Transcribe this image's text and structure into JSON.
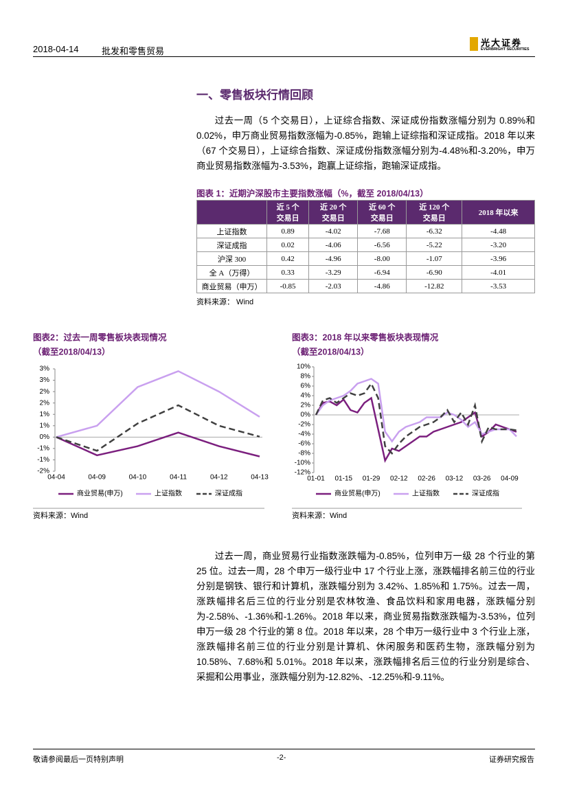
{
  "header": {
    "date": "2018-04-14",
    "title": "批发和零售贸易",
    "logo_cn": "光大证券",
    "logo_en": "EVERBRIGHT SECURITIES"
  },
  "section_title": "一、零售板块行情回顾",
  "paragraphs": [
    "过去一周（5 个交易日），上证综合指数、深证成份指数涨幅分别为 0.89%和 0.02%，申万商业贸易指数涨幅为-0.85%，跑输上证综指和深证成指。2018 年以来（67 个交易日），上证综合指数、深证成份指数涨幅分别为-4.48%和-3.20%，申万商业贸易指数涨幅为-3.53%，跑赢上证综指，跑输深证成指。",
    "过去一周，商业贸易行业指数涨跌幅为-0.85%，位列申万一级 28 个行业的第 25 位。过去一周，28 个申万一级行业中 17 个行业上涨，涨跌幅排名前三位的行业分别是钢铁、银行和计算机，涨跌幅分别为 3.42%、1.85%和 1.75%。过去一周，涨跌幅排名后三位的行业分别是农林牧渔、食品饮料和家用电器，涨跌幅分别为-2.58%、-1.36%和-1.26%。2018 年以来，商业贸易指数涨跌幅为-3.53%，位列申万一级 28 个行业的第 8 位。2018 年以来，28 个申万一级行业中 3 个行业上涨，涨跌幅排名前三位的行业分别是计算机、休闲服务和医药生物，涨跌幅分别为 10.58%、7.68%和 5.01%。2018 年以来，涨跌幅排名后三位的行业分别是综合、采掘和公用事业，涨跌幅分别为-12.82%、-12.25%和-9.11%。"
  ],
  "table": {
    "caption": "图表 1：近期沪深股市主要指数涨幅（%，截至 2018/04/13）",
    "columns": [
      "近 5 个\n交易日",
      "近 20 个\n交易日",
      "近 60 个\n交易日",
      "近 120 个\n交易日",
      "2018 年以来"
    ],
    "rows": [
      [
        "上证指数",
        "0.89",
        "-4.02",
        "-7.68",
        "-6.32",
        "-4.48"
      ],
      [
        "深证成指",
        "0.02",
        "-4.06",
        "-6.56",
        "-5.22",
        "-3.20"
      ],
      [
        "沪深 300",
        "0.42",
        "-4.96",
        "-8.00",
        "-1.07",
        "-3.96"
      ],
      [
        "全 A（万得）",
        "0.33",
        "-3.29",
        "-6.94",
        "-6.90",
        "-4.01"
      ],
      [
        "商业贸易（申万）",
        "-0.85",
        "-2.03",
        "-4.86",
        "-12.82",
        "-3.53"
      ]
    ],
    "source": "资料来源：  Wind"
  },
  "chart_data": [
    {
      "type": "line",
      "title": "图表2：过去一周零售板块表现情况",
      "subtitle": "（截至2018/04/13）",
      "source": "资料来源：Wind",
      "grid": false,
      "categories": [
        "04-04",
        "04-09",
        "04-10",
        "04-11",
        "04-12",
        "04-13"
      ],
      "ylim": [
        -1.5,
        3
      ],
      "yticks": [
        {
          "value": -1.5,
          "label": "-2%"
        },
        {
          "value": -1,
          "label": "-1%"
        },
        {
          "value": -0.5,
          "label": "-1%"
        },
        {
          "value": 0,
          "label": "0%"
        },
        {
          "value": 0.5,
          "label": "1%"
        },
        {
          "value": 1,
          "label": "1%"
        },
        {
          "value": 1.5,
          "label": "2%"
        },
        {
          "value": 2,
          "label": "2%"
        },
        {
          "value": 2.5,
          "label": "3%"
        },
        {
          "value": 3,
          "label": "3%"
        }
      ],
      "series": [
        {
          "name": "商业贸易(申万)",
          "color": "#7b1f7e",
          "values": [
            0,
            -0.8,
            -0.4,
            0.2,
            -0.4,
            -0.85
          ]
        },
        {
          "name": "上证指数",
          "color": "#c9a0ef",
          "values": [
            0,
            0.5,
            2.2,
            2.9,
            2.0,
            0.89
          ]
        },
        {
          "name": "深证成指",
          "color": "#404040",
          "dashed": true,
          "values": [
            0,
            -0.6,
            0.6,
            1.4,
            0.5,
            0.02
          ]
        }
      ]
    },
    {
      "type": "line",
      "title": "图表3：2018 年以来零售板块表现情况",
      "subtitle": "（截至2018/04/13）",
      "source": "资料来源：Wind",
      "grid": false,
      "categories": [
        "01-01",
        null,
        null,
        null,
        "01-15",
        null,
        null,
        null,
        "01-29",
        null,
        null,
        null,
        "02-12",
        null,
        null,
        null,
        "02-26",
        null,
        null,
        null,
        "03-12",
        null,
        null,
        null,
        "03-26",
        null,
        null,
        null,
        "04-09",
        null
      ],
      "ylim": [
        -12,
        10
      ],
      "yticks": [
        {
          "value": -12,
          "label": "-12%"
        },
        {
          "value": -10,
          "label": "-10%"
        },
        {
          "value": -8,
          "label": "-8%"
        },
        {
          "value": -6,
          "label": "-6%"
        },
        {
          "value": -4,
          "label": "-4%"
        },
        {
          "value": -2,
          "label": "-2%"
        },
        {
          "value": 0,
          "label": "0%"
        },
        {
          "value": 2,
          "label": "2%"
        },
        {
          "value": 4,
          "label": "4%"
        },
        {
          "value": 6,
          "label": "6%"
        },
        {
          "value": 8,
          "label": "8%"
        },
        {
          "value": 10,
          "label": "10%"
        }
      ],
      "series": [
        {
          "name": "商业贸易(申万)",
          "color": "#7b1f7e",
          "values": [
            0,
            2.5,
            2.8,
            2.0,
            3.2,
            1.0,
            0.5,
            2.5,
            3.5,
            -3.0,
            -9.5,
            -7.0,
            -7.5,
            -6.5,
            -5.5,
            -4.5,
            -4.5,
            -3.5,
            -3.0,
            -2.5,
            -2.0,
            -1.5,
            -0.5,
            0.5,
            -4.5,
            -3.5,
            -2.0,
            -2.5,
            -3.0,
            -3.53
          ]
        },
        {
          "name": "上证指数",
          "color": "#c9a0ef",
          "values": [
            0,
            2.0,
            3.0,
            3.5,
            4.0,
            5.0,
            6.5,
            7.0,
            7.5,
            6.5,
            -3.5,
            -5.5,
            -3.5,
            -2.5,
            -2.0,
            -1.5,
            -0.5,
            -0.5,
            -0.5,
            0.5,
            0.0,
            -1.0,
            -2.5,
            -1.5,
            -4.0,
            -3.5,
            -3.0,
            -3.0,
            -3.0,
            -4.48
          ]
        },
        {
          "name": "深证成指",
          "color": "#404040",
          "dashed": true,
          "values": [
            0,
            3.0,
            3.5,
            2.5,
            3.5,
            4.5,
            4.0,
            4.5,
            6.5,
            3.5,
            -6.5,
            -8.0,
            -6.0,
            -4.5,
            -3.5,
            -2.5,
            -2.0,
            -1.5,
            -0.5,
            1.0,
            -1.5,
            0.5,
            -2.0,
            2.0,
            -5.5,
            -2.5,
            -3.0,
            -3.0,
            -3.0,
            -3.2
          ]
        }
      ]
    }
  ],
  "footer": {
    "left": "敬请参阅最后一页特别声明",
    "center": "-2-",
    "right": "证券研究报告"
  }
}
